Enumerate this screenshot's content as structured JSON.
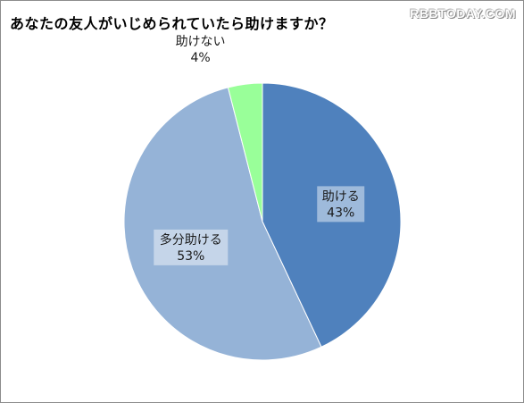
{
  "watermark": "RBBTODAY.COM",
  "chart_data": {
    "type": "pie",
    "title": "あなたの友人がいじめられていたら助けますか？",
    "slices": [
      {
        "label": "助ける",
        "value": 43,
        "value_label": "43%",
        "color": "#4f81bd"
      },
      {
        "label": "多分助ける",
        "value": 53,
        "value_label": "53%",
        "color": "#95b3d7"
      },
      {
        "label": "助けない",
        "value": 4,
        "value_label": "4%",
        "color": "#99ff99"
      }
    ],
    "start_angle_deg": 0,
    "direction": "clockwise",
    "legend": "none"
  }
}
